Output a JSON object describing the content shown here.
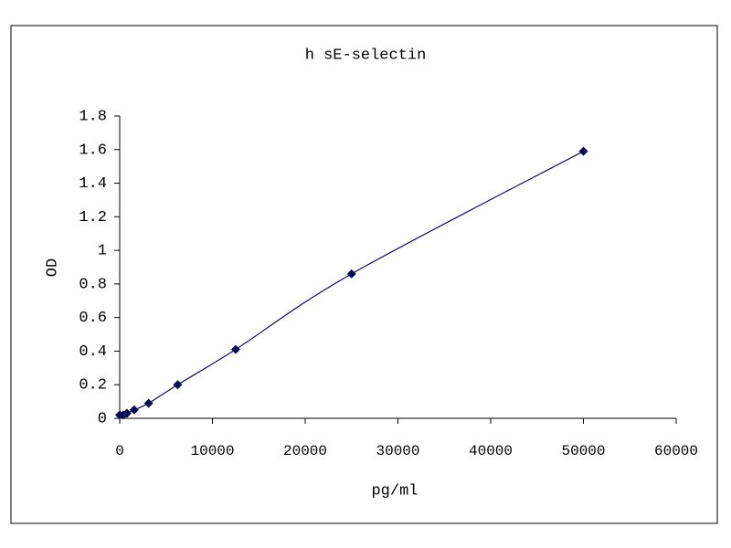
{
  "chart_data": {
    "type": "scatter",
    "title": "h sE-selectin",
    "x_label": "pg/ml",
    "y_label": "OD",
    "series": [
      {
        "x": [
          0,
          390,
          781,
          1562,
          3125,
          6250,
          12500,
          25000,
          50000
        ],
        "values": [
          0.02,
          0.02,
          0.03,
          0.05,
          0.09,
          0.2,
          0.41,
          0.86,
          1.59
        ],
        "color": "#0a0a5a"
      }
    ],
    "xlim": [
      0,
      60000
    ],
    "xticks": [
      0,
      10000,
      20000,
      30000,
      40000,
      50000,
      60000
    ],
    "ylim": [
      0,
      1.8
    ],
    "yticks": [
      0,
      0.2,
      0.4,
      0.6,
      0.8,
      1,
      1.2,
      1.4,
      1.6,
      1.8
    ],
    "smooth": true
  }
}
